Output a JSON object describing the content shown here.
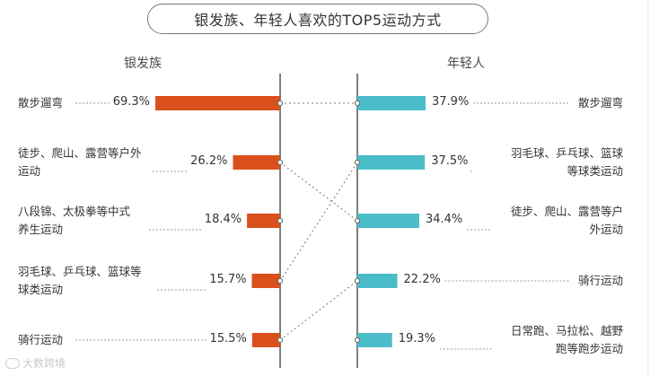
{
  "title": "银发族、年轻人喜欢的TOP5运动方式",
  "watermark": "大数跨境",
  "chart_data": {
    "type": "bar",
    "left": {
      "name": "银发族",
      "color": "#d9501c",
      "items": [
        {
          "label": [
            "散步遛弯"
          ],
          "value": 69.3,
          "display": "69.3%"
        },
        {
          "label": [
            "徒步、爬山、露营等户外",
            "运动"
          ],
          "value": 26.2,
          "display": "26.2%"
        },
        {
          "label": [
            "八段锦、太极拳等中式",
            "养生运动"
          ],
          "value": 18.4,
          "display": "18.4%"
        },
        {
          "label": [
            "羽毛球、乒乓球、篮球等",
            "球类运动"
          ],
          "value": 15.7,
          "display": "15.7%"
        },
        {
          "label": [
            "骑行运动"
          ],
          "value": 15.5,
          "display": "15.5%"
        }
      ]
    },
    "right": {
      "name": "年轻人",
      "color": "#4bbdc9",
      "items": [
        {
          "label": [
            "散步遛弯"
          ],
          "value": 37.9,
          "display": "37.9%"
        },
        {
          "label": [
            "羽毛球、乒乓球、篮球",
            "等球类运动"
          ],
          "value": 37.5,
          "display": "37.5%"
        },
        {
          "label": [
            "徒步、爬山、露营等户",
            "外运动"
          ],
          "value": 34.4,
          "display": "34.4%"
        },
        {
          "label": [
            "骑行运动"
          ],
          "value": 22.2,
          "display": "22.2%"
        },
        {
          "label": [
            "日常跑、马拉松、越野",
            "跑等跑步运动"
          ],
          "value": 19.3,
          "display": "19.3%"
        }
      ]
    },
    "links": [
      [
        0,
        0
      ],
      [
        1,
        2
      ],
      [
        3,
        1
      ],
      [
        4,
        3
      ]
    ]
  }
}
